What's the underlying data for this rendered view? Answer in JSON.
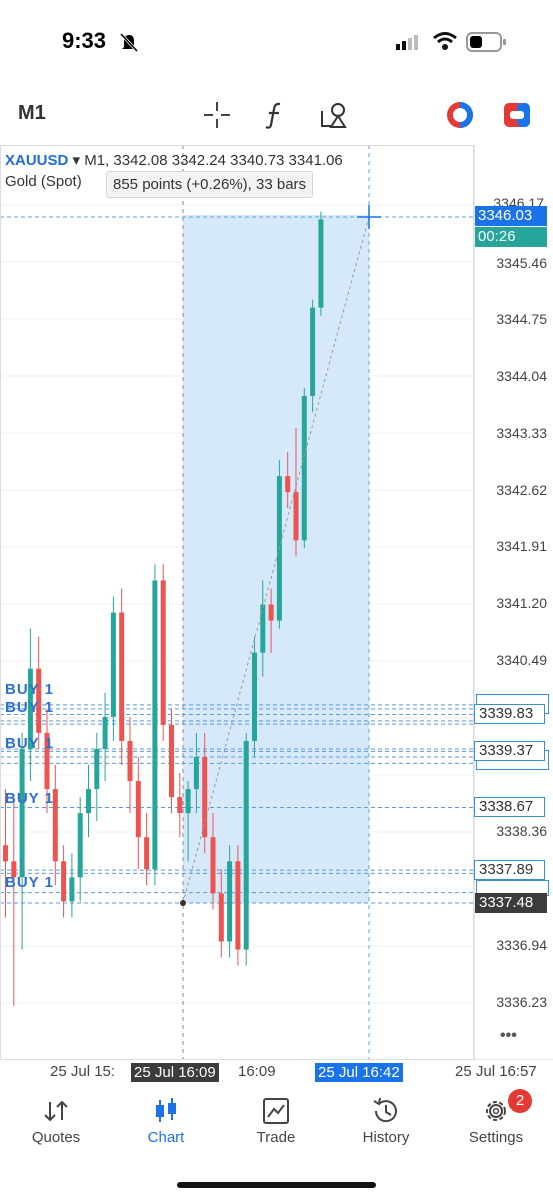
{
  "status_bar": {
    "time": "9:33"
  },
  "toolbar": {
    "timeframe": "M1",
    "icons": [
      "crosshair-icon",
      "function-icon",
      "objects-icon",
      "one-click-trading-icon",
      "account-icon"
    ]
  },
  "chart_header": {
    "symbol": "XAUUSD",
    "ohlc": "▾ M1, 3342.08 3342.24 3340.73 3341.06",
    "description": "Gold (Spot)",
    "measure": "855 points (+0.26%), 33 bars"
  },
  "price_axis": [
    "3346.17",
    "3345.46",
    "3344.75",
    "3344.04",
    "3343.33",
    "3342.62",
    "3341.91",
    "3341.20",
    "3340.49",
    "3338.36",
    "3336.94",
    "3336.23"
  ],
  "current_price": {
    "price": "3346.03",
    "timer": "00:26",
    "bg": "#1a73e8",
    "timer_bg": "#26a69a"
  },
  "order_labels": [
    "3339.83",
    "3339.37",
    "3338.67",
    "3337.89",
    "3337.48"
  ],
  "buy_tags": [
    "BUY 1",
    "BUY 1",
    "BUY 1",
    "BUY 1",
    "BUY 1"
  ],
  "time_axis": {
    "t1": "25 Jul 15:",
    "t2": "25 Jul 16:09",
    "t3": "16:09",
    "t4": "25 Jul 16:42",
    "t5": "25 Jul 16:57"
  },
  "more_label": "•••",
  "colors": {
    "up": "#26a69a",
    "down": "#ef5350",
    "selection": "#d6e9fb",
    "accent": "#1a73e8"
  },
  "chart_data": {
    "type": "candlestick",
    "symbol": "XAUUSD",
    "timeframe": "M1",
    "ylim": [
      3336.0,
      3346.5
    ],
    "candles": [
      {
        "o": 3338.2,
        "h": 3338.9,
        "l": 3337.3,
        "c": 3338.0
      },
      {
        "o": 3338.0,
        "h": 3338.8,
        "l": 3336.2,
        "c": 3337.8
      },
      {
        "o": 3337.8,
        "h": 3339.6,
        "l": 3336.9,
        "c": 3339.4
      },
      {
        "o": 3339.4,
        "h": 3340.9,
        "l": 3339.0,
        "c": 3340.4
      },
      {
        "o": 3340.4,
        "h": 3340.8,
        "l": 3339.4,
        "c": 3339.6
      },
      {
        "o": 3339.6,
        "h": 3339.9,
        "l": 3338.6,
        "c": 3338.9
      },
      {
        "o": 3338.9,
        "h": 3339.2,
        "l": 3337.7,
        "c": 3338.0
      },
      {
        "o": 3338.0,
        "h": 3338.2,
        "l": 3337.3,
        "c": 3337.5
      },
      {
        "o": 3337.5,
        "h": 3338.1,
        "l": 3337.3,
        "c": 3337.8
      },
      {
        "o": 3337.8,
        "h": 3338.8,
        "l": 3337.5,
        "c": 3338.6
      },
      {
        "o": 3338.6,
        "h": 3339.2,
        "l": 3338.3,
        "c": 3338.9
      },
      {
        "o": 3338.9,
        "h": 3339.6,
        "l": 3338.5,
        "c": 3339.4
      },
      {
        "o": 3339.4,
        "h": 3340.1,
        "l": 3339.0,
        "c": 3339.8
      },
      {
        "o": 3339.8,
        "h": 3341.3,
        "l": 3339.5,
        "c": 3341.1
      },
      {
        "o": 3341.1,
        "h": 3341.4,
        "l": 3339.2,
        "c": 3339.5
      },
      {
        "o": 3339.5,
        "h": 3339.8,
        "l": 3338.6,
        "c": 3339.0
      },
      {
        "o": 3339.0,
        "h": 3339.3,
        "l": 3337.9,
        "c": 3338.3
      },
      {
        "o": 3338.3,
        "h": 3338.6,
        "l": 3337.7,
        "c": 3337.9
      },
      {
        "o": 3337.9,
        "h": 3341.7,
        "l": 3337.7,
        "c": 3341.5
      },
      {
        "o": 3341.5,
        "h": 3341.7,
        "l": 3339.5,
        "c": 3339.7
      },
      {
        "o": 3339.7,
        "h": 3339.9,
        "l": 3338.6,
        "c": 3338.8
      },
      {
        "o": 3338.8,
        "h": 3339.1,
        "l": 3338.3,
        "c": 3338.6
      },
      {
        "o": 3338.6,
        "h": 3339.0,
        "l": 3338.0,
        "c": 3338.9
      },
      {
        "o": 3338.9,
        "h": 3339.6,
        "l": 3338.6,
        "c": 3339.3
      },
      {
        "o": 3339.3,
        "h": 3339.6,
        "l": 3338.1,
        "c": 3338.3
      },
      {
        "o": 3338.3,
        "h": 3338.6,
        "l": 3337.4,
        "c": 3337.6
      },
      {
        "o": 3337.6,
        "h": 3337.9,
        "l": 3336.8,
        "c": 3337.0
      },
      {
        "o": 3337.0,
        "h": 3338.2,
        "l": 3336.8,
        "c": 3338.0
      },
      {
        "o": 3338.0,
        "h": 3338.2,
        "l": 3336.7,
        "c": 3336.9
      },
      {
        "o": 3336.9,
        "h": 3339.6,
        "l": 3336.7,
        "c": 3339.5
      },
      {
        "o": 3339.5,
        "h": 3340.8,
        "l": 3339.3,
        "c": 3340.6
      },
      {
        "o": 3340.6,
        "h": 3341.5,
        "l": 3340.3,
        "c": 3341.2
      },
      {
        "o": 3341.2,
        "h": 3341.4,
        "l": 3340.6,
        "c": 3341.0
      },
      {
        "o": 3341.0,
        "h": 3343.0,
        "l": 3340.9,
        "c": 3342.8
      },
      {
        "o": 3342.8,
        "h": 3343.1,
        "l": 3342.4,
        "c": 3342.6
      },
      {
        "o": 3342.6,
        "h": 3343.4,
        "l": 3341.8,
        "c": 3342.0
      },
      {
        "o": 3342.0,
        "h": 3343.9,
        "l": 3341.9,
        "c": 3343.8
      },
      {
        "o": 3343.8,
        "h": 3345.0,
        "l": 3343.6,
        "c": 3344.9
      },
      {
        "o": 3344.9,
        "h": 3346.1,
        "l": 3344.8,
        "c": 3346.0
      }
    ],
    "order_lines": [
      3339.95,
      3339.9,
      3339.83,
      3339.75,
      3339.71,
      3339.4,
      3339.37,
      3339.3,
      3339.22,
      3338.67,
      3337.89,
      3337.85,
      3337.61,
      3337.48
    ]
  }
}
